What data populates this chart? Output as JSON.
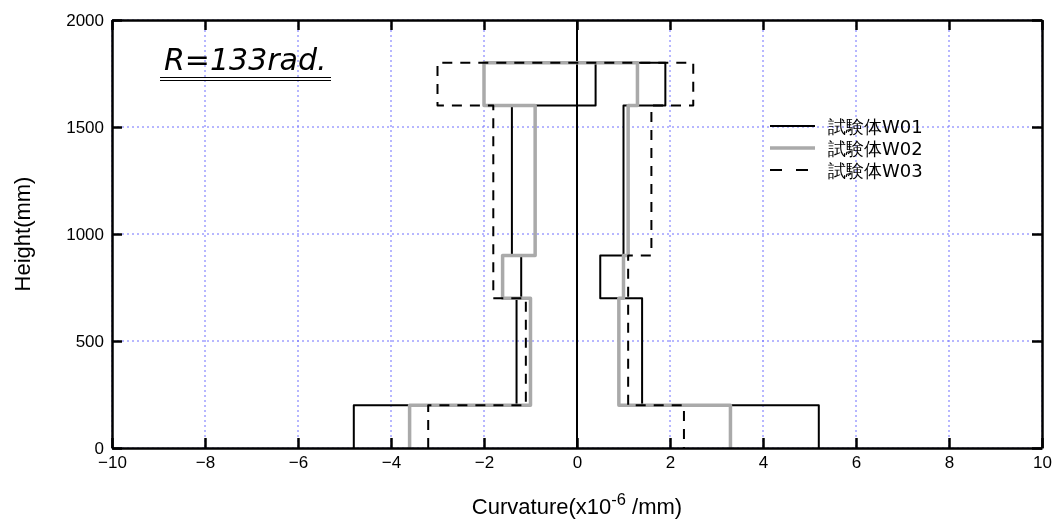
{
  "chart_data": {
    "type": "line",
    "xlabel": "Curvature(x10$^{-6}$ /mm)",
    "ylabel": "Height(mm)",
    "xlim": [
      -10,
      10
    ],
    "xticks": [
      -10,
      -8,
      -6,
      -4,
      -2,
      0,
      2,
      4,
      6,
      8,
      10
    ],
    "ylim": [
      0,
      2000
    ],
    "yticks": [
      0,
      500,
      1000,
      1500,
      2000
    ],
    "grid": true,
    "legend": "top right",
    "marker": "none",
    "annotations": [
      "R=133rad."
    ],
    "ref_lines": [
      {
        "axis": "x",
        "value": 0,
        "color": "#000000",
        "line_style": "solid"
      }
    ],
    "series": [
      {
        "name": "試験体W01",
        "color": "#000000",
        "line_style": "solid",
        "x": [
          -4.8,
          -4.8,
          -1.3,
          -1.3,
          -1.2,
          -1.2,
          -1.4,
          -1.4,
          0.4,
          0.4,
          1.9,
          1.9,
          1.0,
          1.0,
          0.5,
          0.5,
          1.4,
          1.4,
          5.2,
          5.2
        ],
        "values": [
          0,
          200,
          200,
          700,
          700,
          900,
          900,
          1600,
          1600,
          1800,
          1800,
          1600,
          1600,
          900,
          900,
          700,
          700,
          200,
          200,
          0
        ]
      },
      {
        "name": "試験体W02",
        "color": "#aaaaaa",
        "line_style": "solid",
        "x": [
          -3.6,
          -3.6,
          -1.0,
          -1.0,
          -1.6,
          -1.6,
          -0.9,
          -0.9,
          -2.0,
          -2.0,
          1.3,
          1.3,
          1.1,
          1.1,
          1.0,
          1.0,
          0.9,
          0.9,
          3.3,
          3.3
        ],
        "values": [
          0,
          200,
          200,
          700,
          700,
          900,
          900,
          1600,
          1600,
          1800,
          1800,
          1600,
          1600,
          900,
          900,
          700,
          700,
          200,
          200,
          0
        ]
      },
      {
        "name": "試験体W03",
        "color": "#000000",
        "line_style": "dashed",
        "x": [
          -3.2,
          -3.2,
          -1.1,
          -1.1,
          -1.8,
          -1.8,
          -1.8,
          -1.8,
          -3.0,
          -3.0,
          2.5,
          2.5,
          1.6,
          1.6,
          1.1,
          1.1,
          1.1,
          1.1,
          2.3,
          2.3
        ],
        "values": [
          0,
          200,
          200,
          700,
          700,
          900,
          900,
          1600,
          1600,
          1800,
          1800,
          1600,
          1600,
          900,
          900,
          700,
          700,
          200,
          200,
          0
        ]
      }
    ]
  }
}
